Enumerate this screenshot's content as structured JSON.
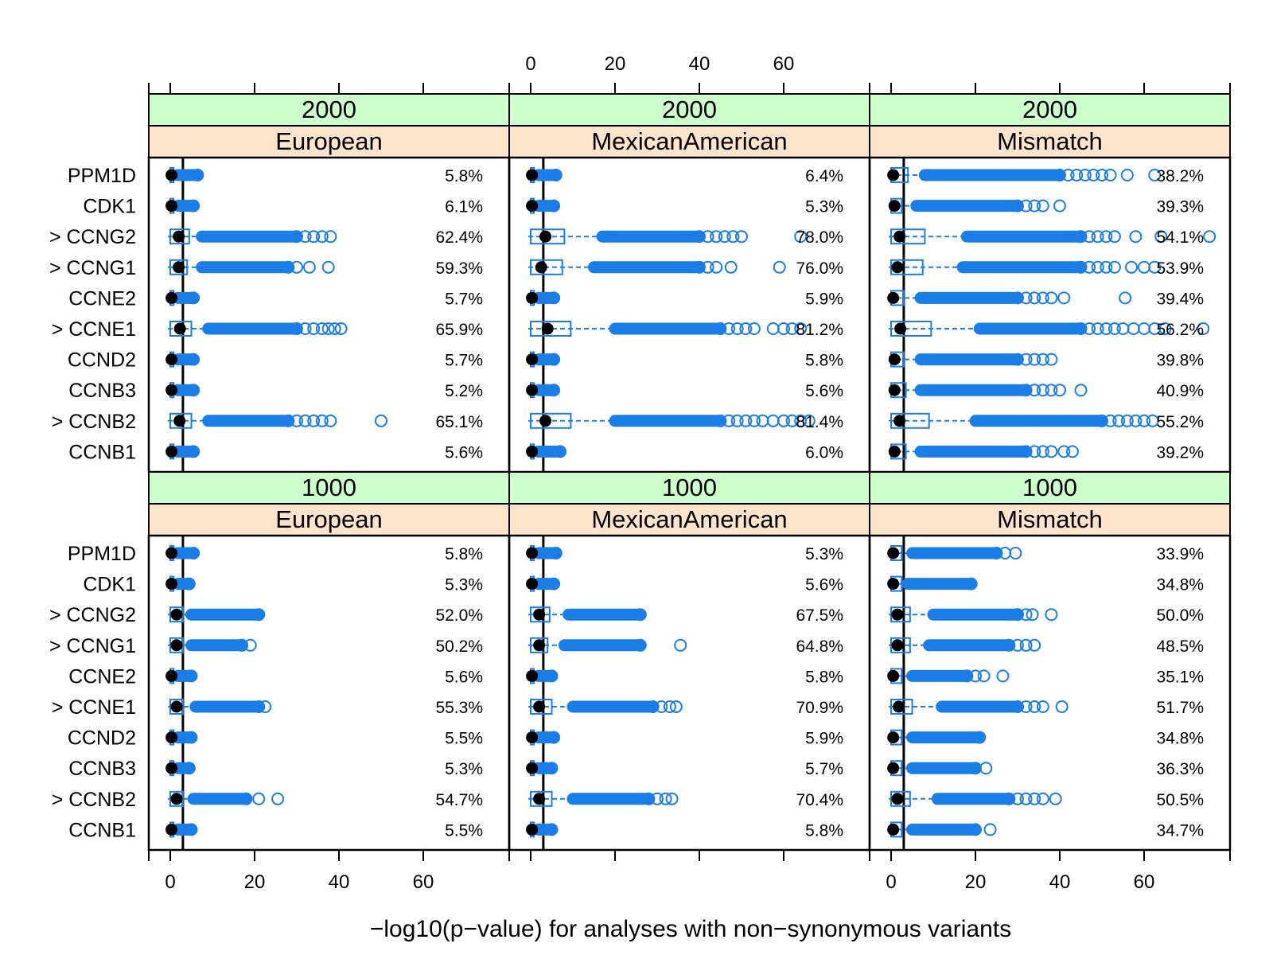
{
  "chart_data": {
    "type": "box",
    "xlabel": "−log10(p−value) for analyses with non−synonymous variants",
    "xlim": [
      -5,
      80
    ],
    "xticks": [
      0,
      20,
      40,
      60
    ],
    "xtick_labels": [
      "0",
      "20",
      "40",
      "60"
    ],
    "colors": {
      "box": "#1a7ee6",
      "median": "#000000",
      "frame": "#000000",
      "strip_top": "#ccffcc",
      "strip_bottom": "#ffe4cc"
    },
    "genes": [
      {
        "label": "PPM1D",
        "marked": false
      },
      {
        "label": "CDK1",
        "marked": false
      },
      {
        "label": "> CCNG2",
        "marked": true
      },
      {
        "label": "> CCNG1",
        "marked": true
      },
      {
        "label": "CCNE2",
        "marked": false
      },
      {
        "label": "> CCNE1",
        "marked": true
      },
      {
        "label": "CCND2",
        "marked": false
      },
      {
        "label": "CCNB3",
        "marked": false
      },
      {
        "label": "> CCNB2",
        "marked": true
      },
      {
        "label": "CCNB1",
        "marked": false
      }
    ],
    "panels": [
      {
        "sample_size": "2000",
        "population": "European",
        "reference_line": 3,
        "rows": [
          {
            "gene": "PPM1D",
            "percent": "5.8%",
            "median": 0.3,
            "q3": 0.8,
            "whisker": 1.8,
            "outlier_max": 6.5,
            "far_outliers": []
          },
          {
            "gene": "CDK1",
            "percent": "6.1%",
            "median": 0.3,
            "q3": 0.8,
            "whisker": 1.8,
            "outlier_max": 5.5,
            "far_outliers": []
          },
          {
            "gene": "> CCNG2",
            "percent": "62.4%",
            "median": 2,
            "q3": 4.5,
            "whisker": 7.5,
            "outlier_max": 30,
            "far_outliers": [
              32,
              34,
              36,
              38
            ]
          },
          {
            "gene": "> CCNG1",
            "percent": "59.3%",
            "median": 2,
            "q3": 4,
            "whisker": 7.5,
            "outlier_max": 28,
            "far_outliers": [
              30,
              33,
              37.5
            ]
          },
          {
            "gene": "CCNE2",
            "percent": "5.7%",
            "median": 0.3,
            "q3": 0.8,
            "whisker": 1.8,
            "outlier_max": 5.5,
            "far_outliers": []
          },
          {
            "gene": "> CCNE1",
            "percent": "65.9%",
            "median": 2.3,
            "q3": 5,
            "whisker": 9,
            "outlier_max": 30,
            "far_outliers": [
              32,
              34,
              36,
              37.5,
              39,
              40.5
            ]
          },
          {
            "gene": "CCND2",
            "percent": "5.7%",
            "median": 0.3,
            "q3": 0.8,
            "whisker": 1.8,
            "outlier_max": 5.5,
            "far_outliers": []
          },
          {
            "gene": "CCNB3",
            "percent": "5.2%",
            "median": 0.3,
            "q3": 0.8,
            "whisker": 1.8,
            "outlier_max": 5.5,
            "far_outliers": []
          },
          {
            "gene": "> CCNB2",
            "percent": "65.1%",
            "median": 2.2,
            "q3": 5,
            "whisker": 9,
            "outlier_max": 28,
            "far_outliers": [
              30,
              32,
              34,
              36,
              38,
              50
            ]
          },
          {
            "gene": "CCNB1",
            "percent": "5.6%",
            "median": 0.3,
            "q3": 0.8,
            "whisker": 1.8,
            "outlier_max": 5.5,
            "far_outliers": []
          }
        ]
      },
      {
        "sample_size": "2000",
        "population": "MexicanAmerican",
        "reference_line": 3,
        "rows": [
          {
            "gene": "PPM1D",
            "percent": "6.4%",
            "median": 0.3,
            "q3": 0.8,
            "whisker": 1.8,
            "outlier_max": 6,
            "far_outliers": []
          },
          {
            "gene": "CDK1",
            "percent": "5.3%",
            "median": 0.3,
            "q3": 0.8,
            "whisker": 1.8,
            "outlier_max": 5.5,
            "far_outliers": []
          },
          {
            "gene": "> CCNG2",
            "percent": "78.0%",
            "median": 3.5,
            "q3": 8,
            "whisker": 17,
            "outlier_max": 40,
            "far_outliers": [
              42,
              44,
              46,
              48,
              50,
              64
            ]
          },
          {
            "gene": "> CCNG1",
            "percent": "76.0%",
            "median": 2.5,
            "q3": 7.5,
            "whisker": 15,
            "outlier_max": 40,
            "far_outliers": [
              42,
              44,
              47.5,
              59
            ]
          },
          {
            "gene": "CCNE2",
            "percent": "5.9%",
            "median": 0.3,
            "q3": 0.8,
            "whisker": 1.8,
            "outlier_max": 5.5,
            "far_outliers": []
          },
          {
            "gene": "> CCNE1",
            "percent": "81.2%",
            "median": 4,
            "q3": 9.5,
            "whisker": 20,
            "outlier_max": 45,
            "far_outliers": [
              47,
              49,
              51,
              53,
              57.5,
              60,
              62,
              64
            ]
          },
          {
            "gene": "CCND2",
            "percent": "5.8%",
            "median": 0.3,
            "q3": 0.8,
            "whisker": 1.8,
            "outlier_max": 5.5,
            "far_outliers": []
          },
          {
            "gene": "CCNB3",
            "percent": "5.6%",
            "median": 0.3,
            "q3": 0.8,
            "whisker": 1.8,
            "outlier_max": 5.5,
            "far_outliers": []
          },
          {
            "gene": "> CCNB2",
            "percent": "81.4%",
            "median": 3.5,
            "q3": 9.5,
            "whisker": 20,
            "outlier_max": 45,
            "far_outliers": [
              47,
              49,
              51,
              53,
              55,
              57.5,
              60,
              62,
              64,
              66
            ]
          },
          {
            "gene": "CCNB1",
            "percent": "6.0%",
            "median": 0.3,
            "q3": 0.8,
            "whisker": 1.8,
            "outlier_max": 7,
            "far_outliers": []
          }
        ]
      },
      {
        "sample_size": "2000",
        "population": "Mismatch",
        "reference_line": 3,
        "rows": [
          {
            "gene": "PPM1D",
            "percent": "38.2%",
            "median": 0.5,
            "q3": 4,
            "whisker": 8,
            "outlier_max": 40,
            "far_outliers": [
              42,
              44,
              46,
              48,
              50,
              52,
              56,
              62.5
            ]
          },
          {
            "gene": "CDK1",
            "percent": "39.3%",
            "median": 0.8,
            "q3": 2.5,
            "whisker": 6,
            "outlier_max": 30,
            "far_outliers": [
              32,
              34,
              36,
              40
            ]
          },
          {
            "gene": "> CCNG2",
            "percent": "54.1%",
            "median": 2,
            "q3": 8,
            "whisker": 18,
            "outlier_max": 45,
            "far_outliers": [
              47,
              49,
              51,
              53,
              58,
              64,
              75.5
            ]
          },
          {
            "gene": "> CCNG1",
            "percent": "53.9%",
            "median": 1.5,
            "q3": 7.5,
            "whisker": 17,
            "outlier_max": 45,
            "far_outliers": [
              47,
              49,
              51,
              53,
              57,
              60,
              62.5
            ]
          },
          {
            "gene": "CCNE2",
            "percent": "39.4%",
            "median": 0.5,
            "q3": 3,
            "whisker": 7,
            "outlier_max": 30,
            "far_outliers": [
              32,
              34,
              36,
              38,
              41,
              55.5
            ]
          },
          {
            "gene": "> CCNE1",
            "percent": "56.2%",
            "median": 2.2,
            "q3": 9.5,
            "whisker": 21,
            "outlier_max": 45,
            "far_outliers": [
              47,
              49,
              51,
              53,
              55,
              57.5,
              60,
              62.5,
              65,
              74
            ]
          },
          {
            "gene": "CCND2",
            "percent": "39.8%",
            "median": 0.8,
            "q3": 3,
            "whisker": 7,
            "outlier_max": 30,
            "far_outliers": [
              32,
              34,
              36,
              38
            ]
          },
          {
            "gene": "CCNB3",
            "percent": "40.9%",
            "median": 0.8,
            "q3": 3.5,
            "whisker": 7,
            "outlier_max": 32,
            "far_outliers": [
              34,
              36,
              38,
              40,
              45
            ]
          },
          {
            "gene": "> CCNB2",
            "percent": "55.2%",
            "median": 2,
            "q3": 9,
            "whisker": 20,
            "outlier_max": 50,
            "far_outliers": [
              52,
              54,
              56,
              58,
              60,
              62
            ]
          },
          {
            "gene": "CCNB1",
            "percent": "39.2%",
            "median": 0.8,
            "q3": 3.5,
            "whisker": 7,
            "outlier_max": 32,
            "far_outliers": [
              34,
              36,
              38,
              41,
              43
            ]
          }
        ]
      },
      {
        "sample_size": "1000",
        "population": "European",
        "reference_line": 3,
        "rows": [
          {
            "gene": "PPM1D",
            "percent": "5.8%",
            "median": 0.3,
            "q3": 0.8,
            "whisker": 1.8,
            "outlier_max": 5.5,
            "far_outliers": []
          },
          {
            "gene": "CDK1",
            "percent": "5.3%",
            "median": 0.3,
            "q3": 0.8,
            "whisker": 1.8,
            "outlier_max": 4.5,
            "far_outliers": []
          },
          {
            "gene": "> CCNG2",
            "percent": "52.0%",
            "median": 1.5,
            "q3": 3,
            "whisker": 5,
            "outlier_max": 21,
            "far_outliers": []
          },
          {
            "gene": "> CCNG1",
            "percent": "50.2%",
            "median": 1.5,
            "q3": 3,
            "whisker": 5,
            "outlier_max": 17,
            "far_outliers": [
              19
            ]
          },
          {
            "gene": "CCNE2",
            "percent": "5.6%",
            "median": 0.3,
            "q3": 0.8,
            "whisker": 1.8,
            "outlier_max": 5,
            "far_outliers": []
          },
          {
            "gene": "> CCNE1",
            "percent": "55.3%",
            "median": 1.5,
            "q3": 3,
            "whisker": 6,
            "outlier_max": 21,
            "far_outliers": [
              22.5
            ]
          },
          {
            "gene": "CCND2",
            "percent": "5.5%",
            "median": 0.3,
            "q3": 0.8,
            "whisker": 1.8,
            "outlier_max": 5,
            "far_outliers": []
          },
          {
            "gene": "CCNB3",
            "percent": "5.3%",
            "median": 0.3,
            "q3": 0.8,
            "whisker": 1.8,
            "outlier_max": 4.5,
            "far_outliers": []
          },
          {
            "gene": "> CCNB2",
            "percent": "54.7%",
            "median": 1.5,
            "q3": 3,
            "whisker": 5.5,
            "outlier_max": 18,
            "far_outliers": [
              21,
              25.5
            ]
          },
          {
            "gene": "CCNB1",
            "percent": "5.5%",
            "median": 0.3,
            "q3": 0.8,
            "whisker": 1.8,
            "outlier_max": 5,
            "far_outliers": []
          }
        ]
      },
      {
        "sample_size": "1000",
        "population": "MexicanAmerican",
        "reference_line": 3,
        "rows": [
          {
            "gene": "PPM1D",
            "percent": "5.3%",
            "median": 0.3,
            "q3": 0.8,
            "whisker": 1.8,
            "outlier_max": 6,
            "far_outliers": []
          },
          {
            "gene": "CDK1",
            "percent": "5.6%",
            "median": 0.3,
            "q3": 0.8,
            "whisker": 1.8,
            "outlier_max": 5.5,
            "far_outliers": []
          },
          {
            "gene": "> CCNG2",
            "percent": "67.5%",
            "median": 2,
            "q3": 4.5,
            "whisker": 9,
            "outlier_max": 26,
            "far_outliers": []
          },
          {
            "gene": "> CCNG1",
            "percent": "64.8%",
            "median": 2,
            "q3": 4,
            "whisker": 8,
            "outlier_max": 26,
            "far_outliers": [
              35.5
            ]
          },
          {
            "gene": "CCNE2",
            "percent": "5.8%",
            "median": 0.3,
            "q3": 0.8,
            "whisker": 1.8,
            "outlier_max": 5,
            "far_outliers": []
          },
          {
            "gene": "> CCNE1",
            "percent": "70.9%",
            "median": 2,
            "q3": 5,
            "whisker": 10,
            "outlier_max": 29,
            "far_outliers": [
              31,
              33,
              34.5
            ]
          },
          {
            "gene": "CCND2",
            "percent": "5.9%",
            "median": 0.3,
            "q3": 0.8,
            "whisker": 1.8,
            "outlier_max": 5.5,
            "far_outliers": []
          },
          {
            "gene": "CCNB3",
            "percent": "5.7%",
            "median": 0.3,
            "q3": 0.8,
            "whisker": 1.8,
            "outlier_max": 5,
            "far_outliers": []
          },
          {
            "gene": "> CCNB2",
            "percent": "70.4%",
            "median": 2,
            "q3": 5,
            "whisker": 10,
            "outlier_max": 28,
            "far_outliers": [
              30,
              32,
              33.5
            ]
          },
          {
            "gene": "CCNB1",
            "percent": "5.8%",
            "median": 0.3,
            "q3": 0.8,
            "whisker": 1.8,
            "outlier_max": 5,
            "far_outliers": []
          }
        ]
      },
      {
        "sample_size": "1000",
        "population": "Mismatch",
        "reference_line": 3,
        "rows": [
          {
            "gene": "PPM1D",
            "percent": "33.9%",
            "median": 0.5,
            "q3": 2.5,
            "whisker": 5,
            "outlier_max": 25,
            "far_outliers": [
              27,
              29.5
            ]
          },
          {
            "gene": "CDK1",
            "percent": "34.8%",
            "median": 0.5,
            "q3": 2.5,
            "whisker": 4,
            "outlier_max": 19,
            "far_outliers": []
          },
          {
            "gene": "> CCNG2",
            "percent": "50.0%",
            "median": 1.5,
            "q3": 4.5,
            "whisker": 10,
            "outlier_max": 30,
            "far_outliers": [
              32,
              33.5,
              38
            ]
          },
          {
            "gene": "> CCNG1",
            "percent": "48.5%",
            "median": 1.5,
            "q3": 4.5,
            "whisker": 9,
            "outlier_max": 28,
            "far_outliers": [
              30,
              32,
              34
            ]
          },
          {
            "gene": "CCNE2",
            "percent": "35.1%",
            "median": 0.5,
            "q3": 2.5,
            "whisker": 5,
            "outlier_max": 18,
            "far_outliers": [
              20,
              22,
              26.5
            ]
          },
          {
            "gene": "> CCNE1",
            "percent": "51.7%",
            "median": 1.8,
            "q3": 5,
            "whisker": 12,
            "outlier_max": 30,
            "far_outliers": [
              32,
              34,
              36,
              40.5
            ]
          },
          {
            "gene": "CCND2",
            "percent": "34.8%",
            "median": 0.5,
            "q3": 2.5,
            "whisker": 5,
            "outlier_max": 21,
            "far_outliers": []
          },
          {
            "gene": "CCNB3",
            "percent": "36.3%",
            "median": 0.5,
            "q3": 2.5,
            "whisker": 5,
            "outlier_max": 20,
            "far_outliers": [
              22.5
            ]
          },
          {
            "gene": "> CCNB2",
            "percent": "50.5%",
            "median": 1.5,
            "q3": 4.5,
            "whisker": 11,
            "outlier_max": 28,
            "far_outliers": [
              30,
              32,
              34,
              36,
              39
            ]
          },
          {
            "gene": "CCNB1",
            "percent": "34.7%",
            "median": 0.5,
            "q3": 2.5,
            "whisker": 5,
            "outlier_max": 20,
            "far_outliers": [
              23.5
            ]
          }
        ]
      }
    ]
  }
}
